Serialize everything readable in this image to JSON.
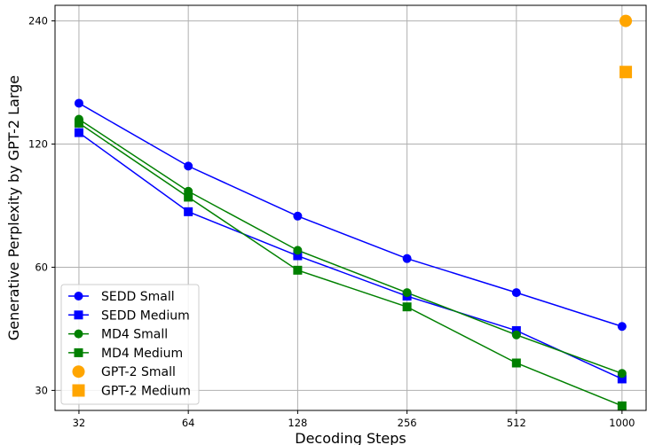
{
  "chart_data": {
    "type": "line",
    "title": "",
    "xlabel": "Decoding Steps",
    "ylabel": "Generative Perplexity by GPT-2 Large",
    "x_scale": "log",
    "y_scale": "log",
    "xlim": [
      27.5,
      1165
    ],
    "ylim": [
      26.8,
      262
    ],
    "x_ticks": [
      32,
      64,
      128,
      256,
      512,
      1000
    ],
    "x_tick_labels": [
      "32",
      "64",
      "128",
      "256",
      "512",
      "1000"
    ],
    "y_ticks": [
      30,
      60,
      120,
      240
    ],
    "y_tick_labels": [
      "30",
      "60",
      "120",
      "240"
    ],
    "grid": true,
    "legend_position": "lower-left",
    "series": [
      {
        "name": "SEDD Small",
        "color": "#0000ff",
        "marker": "circle",
        "line": true,
        "x": [
          32,
          64,
          128,
          256,
          512,
          1000
        ],
        "y": [
          151,
          106,
          80,
          63,
          52,
          43
        ]
      },
      {
        "name": "SEDD Medium",
        "color": "#0000ff",
        "marker": "square",
        "line": true,
        "x": [
          32,
          64,
          128,
          256,
          512,
          1000
        ],
        "y": [
          128,
          82,
          64,
          51,
          42,
          32
        ]
      },
      {
        "name": "MD4 Small",
        "color": "#008000",
        "marker": "circle",
        "line": true,
        "x": [
          32,
          64,
          128,
          256,
          512,
          1000
        ],
        "y": [
          138,
          92,
          66,
          52,
          41,
          33
        ]
      },
      {
        "name": "MD4 Medium",
        "color": "#008000",
        "marker": "square",
        "line": true,
        "x": [
          32,
          64,
          128,
          256,
          512,
          1000
        ],
        "y": [
          135,
          89,
          59,
          48,
          35,
          27.5
        ]
      },
      {
        "name": "GPT-2 Small",
        "color": "#ffa500",
        "marker": "circle",
        "line": false,
        "x": [
          1024
        ],
        "y": [
          240
        ]
      },
      {
        "name": "GPT-2 Medium",
        "color": "#ffa500",
        "marker": "square",
        "line": false,
        "x": [
          1024
        ],
        "y": [
          180
        ]
      }
    ]
  }
}
